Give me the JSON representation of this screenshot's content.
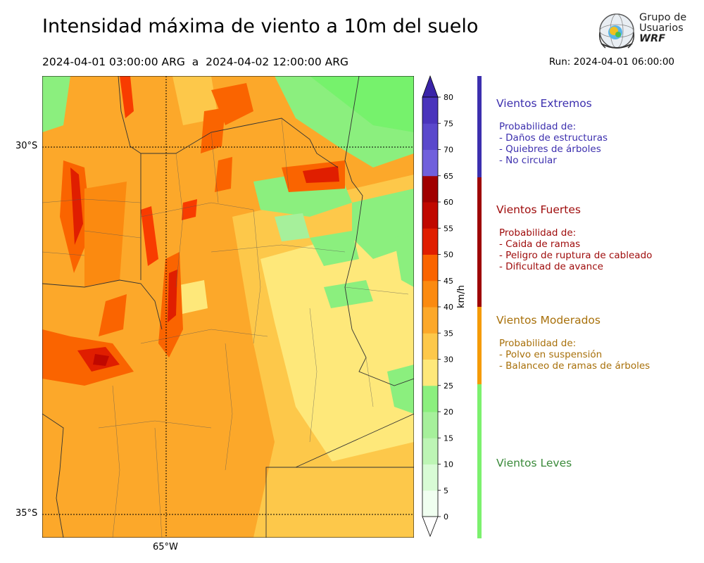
{
  "header": {
    "title": "Intensidad máxima de viento a 10m del suelo",
    "period": "2024-04-01 03:00:00 ARG  a  2024-04-02 12:00:00 ARG",
    "run": "Run: 2024-04-01 06:00:00"
  },
  "logo": {
    "line1": "Grupo de",
    "line2": "Usuarios",
    "line3": "WRF"
  },
  "map": {
    "lat_labels": [
      "30°S",
      "35°S"
    ],
    "lon_labels": [
      "65°W"
    ]
  },
  "colorbar": {
    "unit": "km/h",
    "ticks": [
      "0",
      "5",
      "10",
      "15",
      "20",
      "25",
      "30",
      "35",
      "40",
      "45",
      "50",
      "55",
      "60",
      "65",
      "70",
      "75",
      "80"
    ],
    "colors": [
      "#f0fff0",
      "#d8fbd5",
      "#bdf5b5",
      "#a6f09b",
      "#8bef7e",
      "#76f26c",
      "#fee87a",
      "#fdc84a",
      "#fca82a",
      "#fb8a10",
      "#fa6400",
      "#f83c00",
      "#e01e00",
      "#c00800",
      "#a00000",
      "#7060dc",
      "#5a48cc",
      "#4a34bc",
      "#3a24a8"
    ],
    "color_semantics": "0-25 greens, 25-45 yellows/oranges, 45-65 reds, 65-80 purples"
  },
  "categories": [
    {
      "title": "Vientos Extremos",
      "color": "#3c2fae",
      "bar_color": "#3c2fae",
      "lines": [
        "Probabilidad de:",
        "- Daños de estructuras",
        "- Quiebres de árboles",
        "- No circular"
      ]
    },
    {
      "title": "Vientos Fuertes",
      "color": "#9e0a0a",
      "bar_color": "#9e0505",
      "lines": [
        "Probabilidad de:",
        "- Caida de ramas",
        "- Peligro de ruptura de cableado",
        "- Dificultad de avance"
      ]
    },
    {
      "title": "Vientos Moderados",
      "color": "#a8700a",
      "bar_color": "#f59b06",
      "lines": [
        "Probabilidad de:",
        "- Polvo en suspensión",
        "- Balanceo de ramas de árboles"
      ]
    },
    {
      "title": "Vientos Leves",
      "color": "#3a8a3a",
      "bar_color": "#7cf16e",
      "lines": []
    }
  ]
}
